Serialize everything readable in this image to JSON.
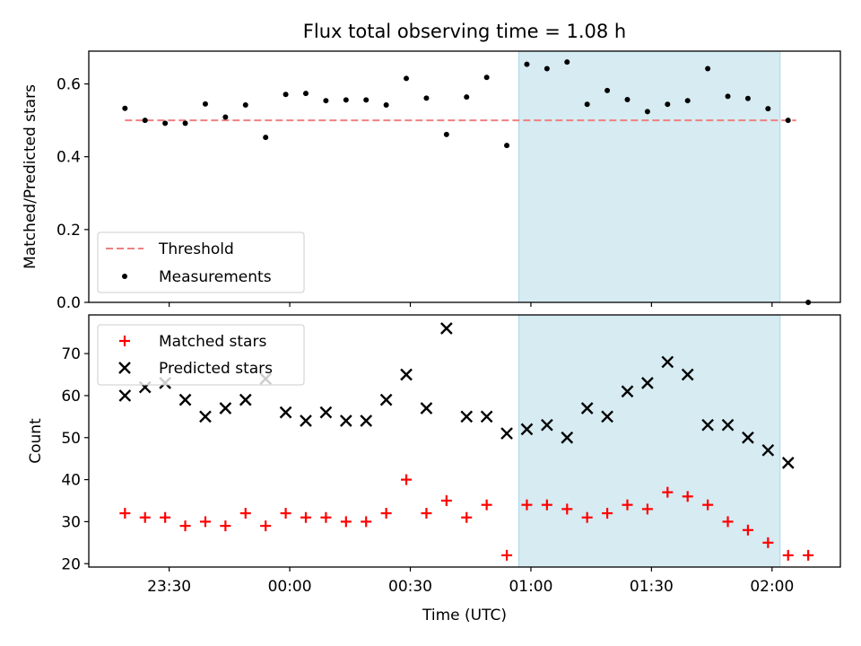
{
  "title": "Flux total observing time = 1.08 h",
  "colors": {
    "threshold": "#f08080",
    "measurement": "#000000",
    "matched": "#ff0000",
    "predicted": "#000000",
    "highlight": "#add8e6"
  },
  "chart_data": [
    {
      "type": "scatter",
      "ylabel": "Matched/Predicted stars",
      "ylim": [
        0,
        0.69
      ],
      "yticks": [
        "0.0",
        "0.2",
        "0.4",
        "0.6"
      ],
      "xlim": [
        "23:10",
        "02:17"
      ],
      "highlight_span": [
        "00:57",
        "02:02"
      ],
      "legend": {
        "position": "lower-left",
        "entries": [
          "Threshold",
          "Measurements"
        ]
      },
      "threshold": {
        "name": "Threshold",
        "value": 0.5,
        "x_range": [
          "23:19",
          "02:06"
        ]
      },
      "series": [
        {
          "name": "Measurements",
          "marker": "dot",
          "x": [
            "23:19",
            "23:24",
            "23:29",
            "23:34",
            "23:39",
            "23:44",
            "23:49",
            "23:54",
            "23:59",
            "00:04",
            "00:09",
            "00:14",
            "00:19",
            "00:24",
            "00:29",
            "00:34",
            "00:39",
            "00:44",
            "00:49",
            "00:54",
            "00:59",
            "01:04",
            "01:09",
            "01:14",
            "01:19",
            "01:24",
            "01:29",
            "01:34",
            "01:39",
            "01:44",
            "01:49",
            "01:54",
            "01:59",
            "02:04",
            "02:09"
          ],
          "y": [
            0.533,
            0.5,
            0.492,
            0.492,
            0.545,
            0.509,
            0.542,
            0.453,
            0.571,
            0.574,
            0.554,
            0.556,
            0.556,
            0.542,
            0.615,
            0.561,
            0.461,
            0.564,
            0.618,
            0.431,
            0.654,
            0.642,
            0.66,
            0.544,
            0.582,
            0.557,
            0.524,
            0.544,
            0.554,
            0.642,
            0.566,
            0.56,
            0.532,
            0.5,
            0.0
          ]
        }
      ]
    },
    {
      "type": "scatter",
      "xlabel": "Time (UTC)",
      "ylabel": "Count",
      "ylim": [
        19.2,
        79.2
      ],
      "yticks": [
        "20",
        "30",
        "40",
        "50",
        "60",
        "70"
      ],
      "xticks": [
        "23:30",
        "00:00",
        "00:30",
        "01:00",
        "01:30",
        "02:00"
      ],
      "xlim": [
        "23:10",
        "02:17"
      ],
      "highlight_span": [
        "00:57",
        "02:02"
      ],
      "legend": {
        "position": "upper-left",
        "entries": [
          "Matched stars",
          "Predicted stars"
        ]
      },
      "series": [
        {
          "name": "Matched stars",
          "marker": "plus",
          "x": [
            "23:19",
            "23:24",
            "23:29",
            "23:34",
            "23:39",
            "23:44",
            "23:49",
            "23:54",
            "23:59",
            "00:04",
            "00:09",
            "00:14",
            "00:19",
            "00:24",
            "00:29",
            "00:34",
            "00:39",
            "00:44",
            "00:49",
            "00:54",
            "00:59",
            "01:04",
            "01:09",
            "01:14",
            "01:19",
            "01:24",
            "01:29",
            "01:34",
            "01:39",
            "01:44",
            "01:49",
            "01:54",
            "01:59",
            "02:04",
            "02:09"
          ],
          "y": [
            32,
            31,
            31,
            29,
            30,
            29,
            32,
            29,
            32,
            31,
            31,
            30,
            30,
            32,
            40,
            32,
            35,
            31,
            34,
            22,
            34,
            34,
            33,
            31,
            32,
            34,
            33,
            37,
            36,
            34,
            30,
            28,
            25,
            22,
            22
          ]
        },
        {
          "name": "Predicted stars",
          "marker": "x",
          "x": [
            "23:19",
            "23:24",
            "23:29",
            "23:34",
            "23:39",
            "23:44",
            "23:49",
            "23:54",
            "23:59",
            "00:04",
            "00:09",
            "00:14",
            "00:19",
            "00:24",
            "00:29",
            "00:34",
            "00:39",
            "00:44",
            "00:49",
            "00:54",
            "00:59",
            "01:04",
            "01:09",
            "01:14",
            "01:19",
            "01:24",
            "01:29",
            "01:34",
            "01:39",
            "01:44",
            "01:49",
            "01:54",
            "01:59",
            "02:04"
          ],
          "y": [
            60,
            62,
            63,
            59,
            55,
            57,
            59,
            64,
            56,
            54,
            56,
            54,
            54,
            59,
            65,
            57,
            76,
            55,
            55,
            51,
            52,
            53,
            50,
            57,
            55,
            61,
            63,
            68,
            65,
            53,
            53,
            50,
            47,
            44
          ]
        }
      ]
    }
  ]
}
